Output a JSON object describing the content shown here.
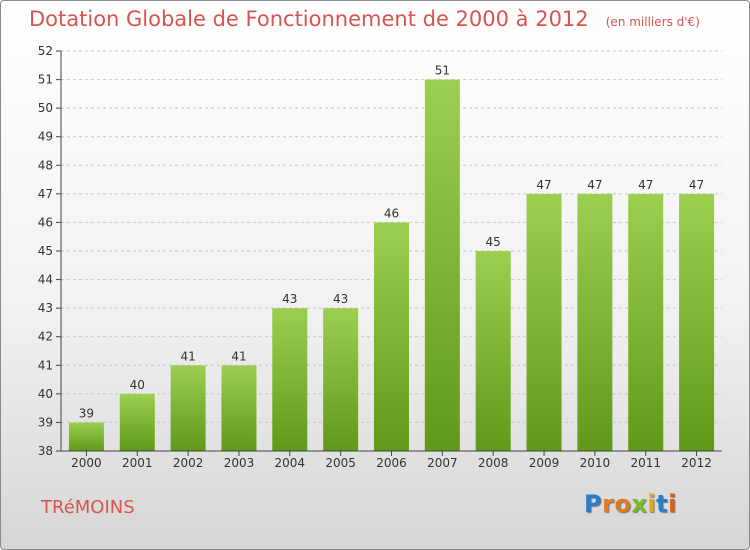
{
  "header": {
    "title": "Dotation Globale de Fonctionnement de 2000 à 2012",
    "unit": "(en milliers d'€)"
  },
  "footer": {
    "commune": "TRéMOINS",
    "logo_letters": [
      "P",
      "r",
      "o",
      "x",
      "i",
      "t",
      "i"
    ],
    "logo_colors": [
      "#2a7dc9",
      "#e07a1f",
      "#e07a1f",
      "#7ab929",
      "#e0a61f",
      "#2a7dc9",
      "#e05a1f"
    ]
  },
  "chart_data": {
    "type": "bar",
    "categories": [
      "2000",
      "2001",
      "2002",
      "2003",
      "2004",
      "2005",
      "2006",
      "2007",
      "2008",
      "2009",
      "2010",
      "2011",
      "2012"
    ],
    "values": [
      39,
      40,
      41,
      41,
      43,
      43,
      46,
      51,
      45,
      47,
      47,
      47,
      47
    ],
    "ylim": [
      38,
      52
    ],
    "yticks": [
      38,
      39,
      40,
      41,
      42,
      43,
      44,
      45,
      46,
      47,
      48,
      49,
      50,
      51,
      52
    ],
    "grid": true,
    "colors": {
      "bar_top": "#9ccf50",
      "bar_bottom": "#5e9a18",
      "grid": "#c8c8c8",
      "axis": "#444444",
      "text": "#333333"
    }
  }
}
